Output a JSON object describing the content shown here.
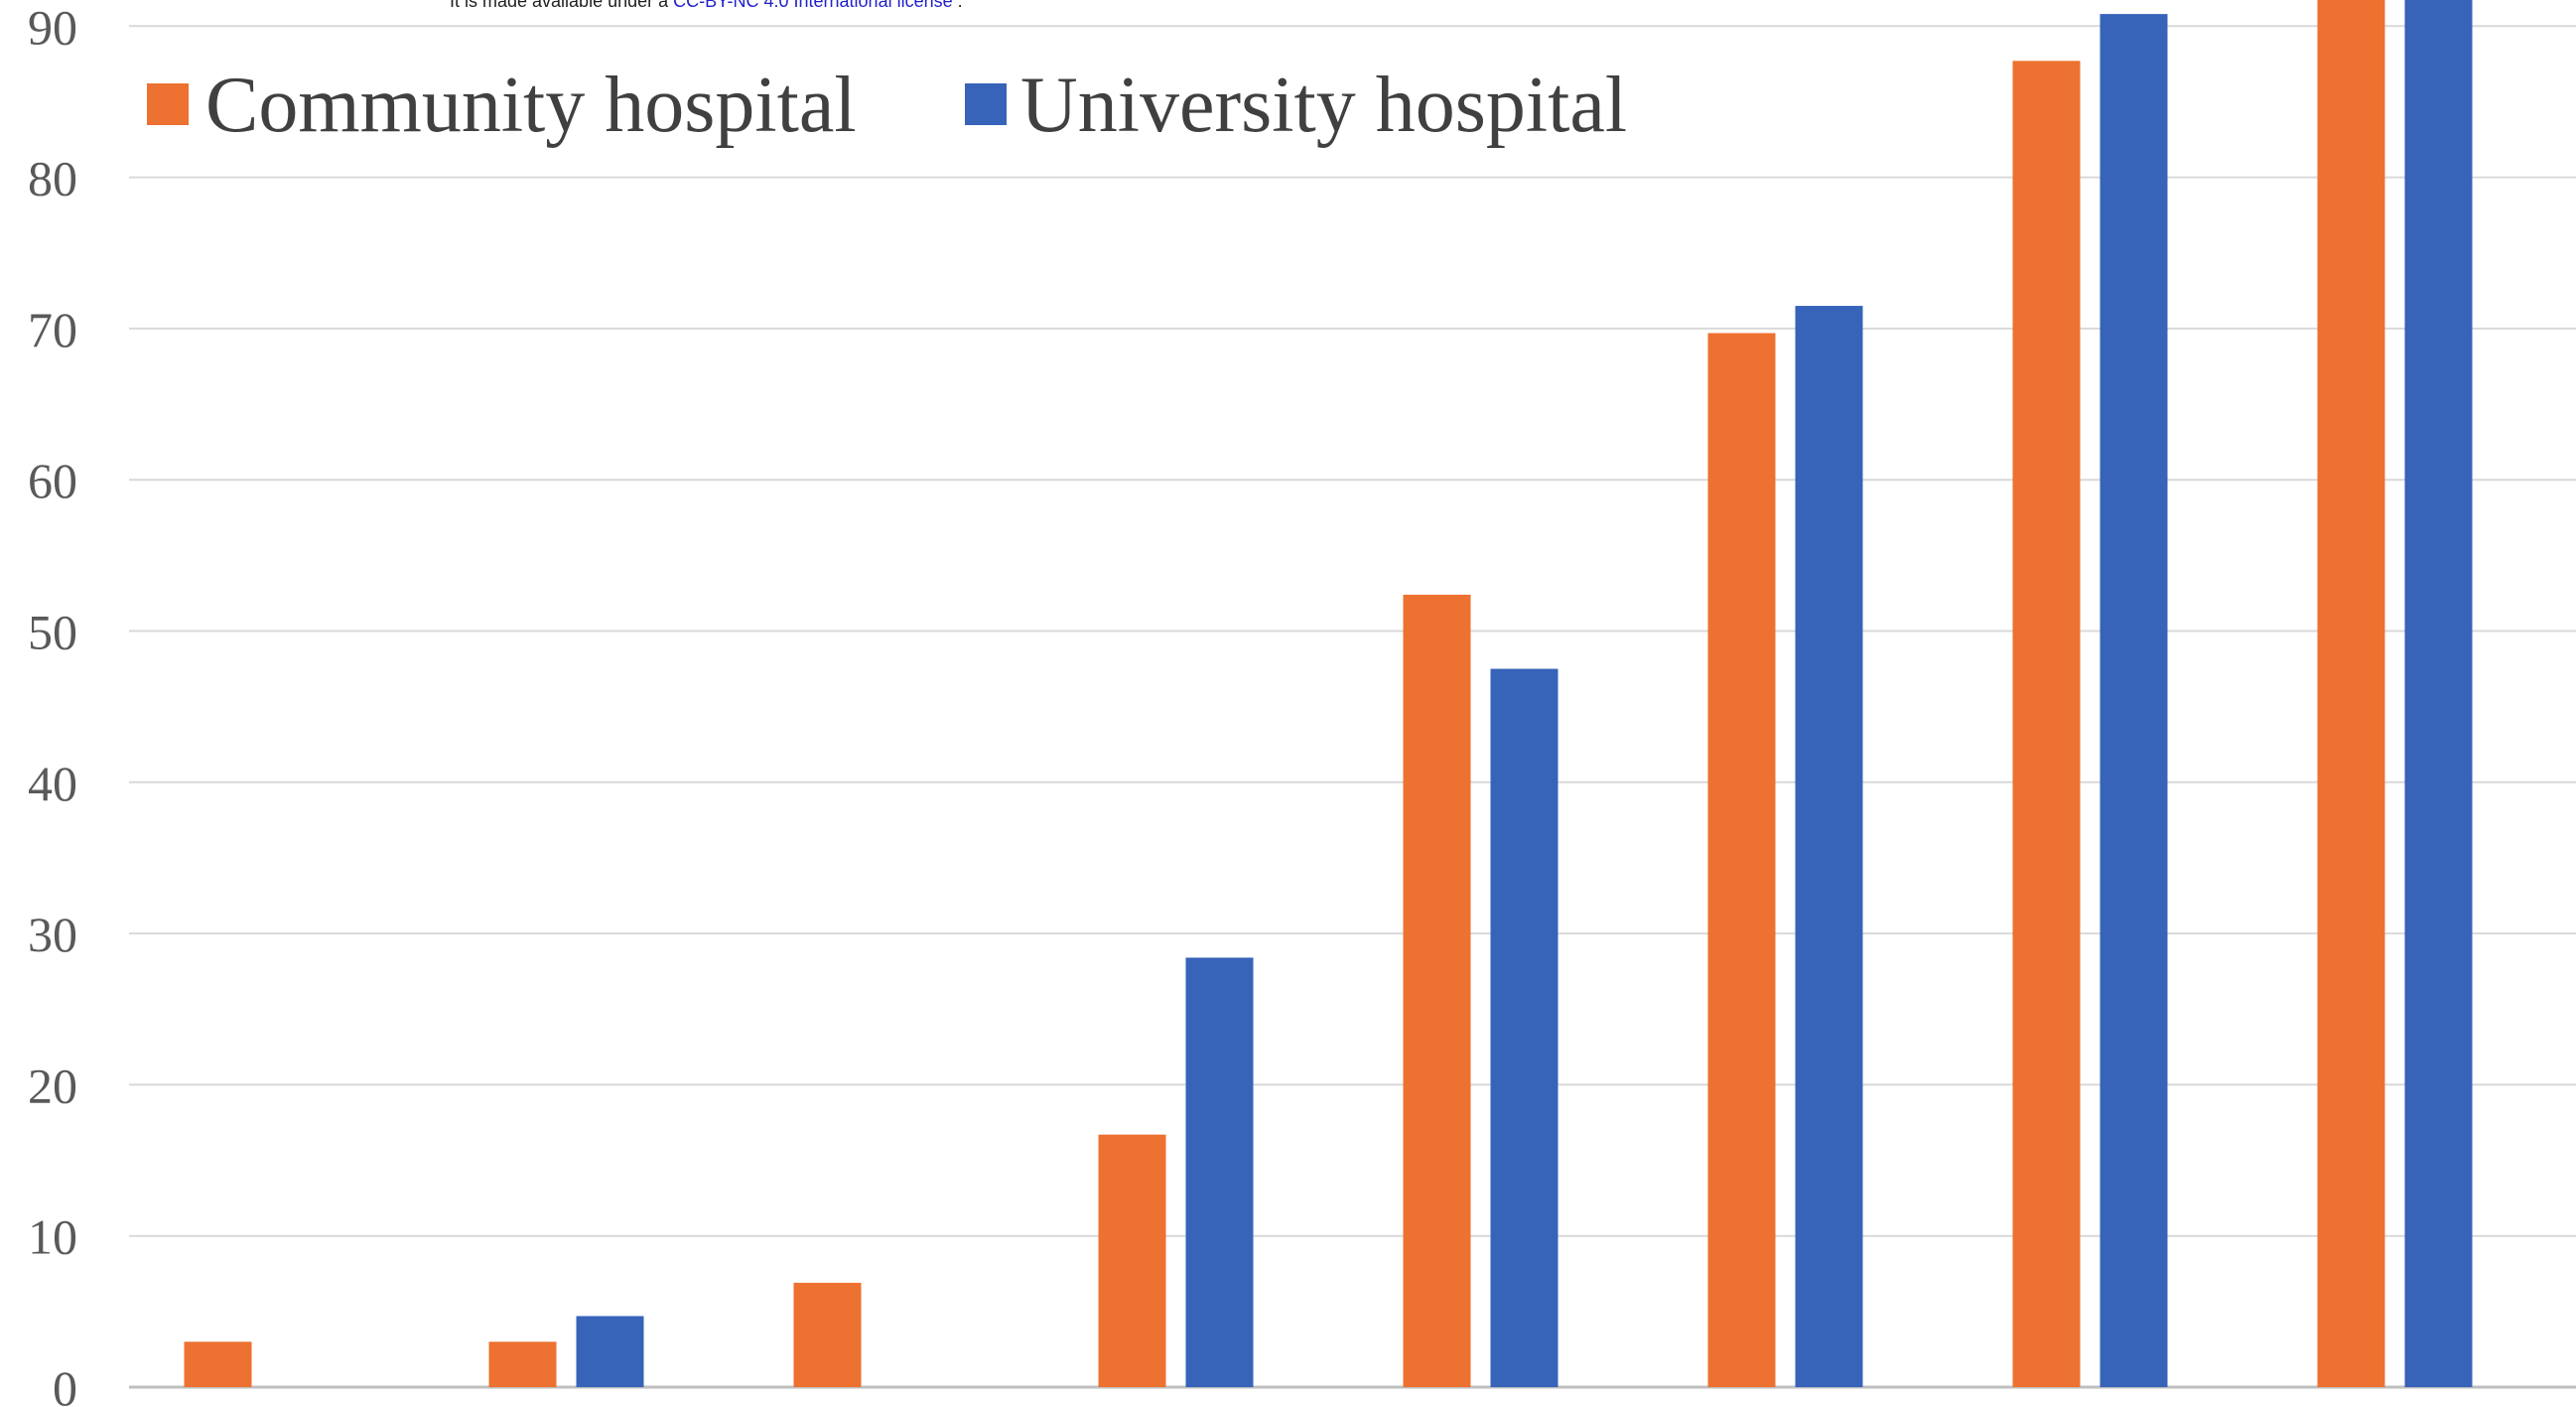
{
  "notice": {
    "prefix": "It is made available under a ",
    "link_text": "CC-BY-NC 4.0 International license",
    "suffix": " ."
  },
  "chart_data": {
    "type": "bar",
    "title": "",
    "xlabel": "",
    "ylabel": "",
    "categories": [
      "",
      "",
      "",
      "",
      "",
      "",
      "",
      ""
    ],
    "ylim": [
      0,
      92.5
    ],
    "yticks": [
      0,
      10,
      20,
      30,
      40,
      50,
      60,
      70,
      80,
      90
    ],
    "grid": true,
    "legend_position": "top-left",
    "series": [
      {
        "name": "Community hospital",
        "color": "#ED7130",
        "values": [
          3.0,
          3.0,
          6.9,
          16.7,
          52.4,
          69.7,
          87.7,
          95.0
        ]
      },
      {
        "name": "University hospital",
        "color": "#3763B9",
        "values": [
          0,
          4.7,
          0,
          28.4,
          47.5,
          71.5,
          90.8,
          95.0
        ]
      }
    ]
  }
}
